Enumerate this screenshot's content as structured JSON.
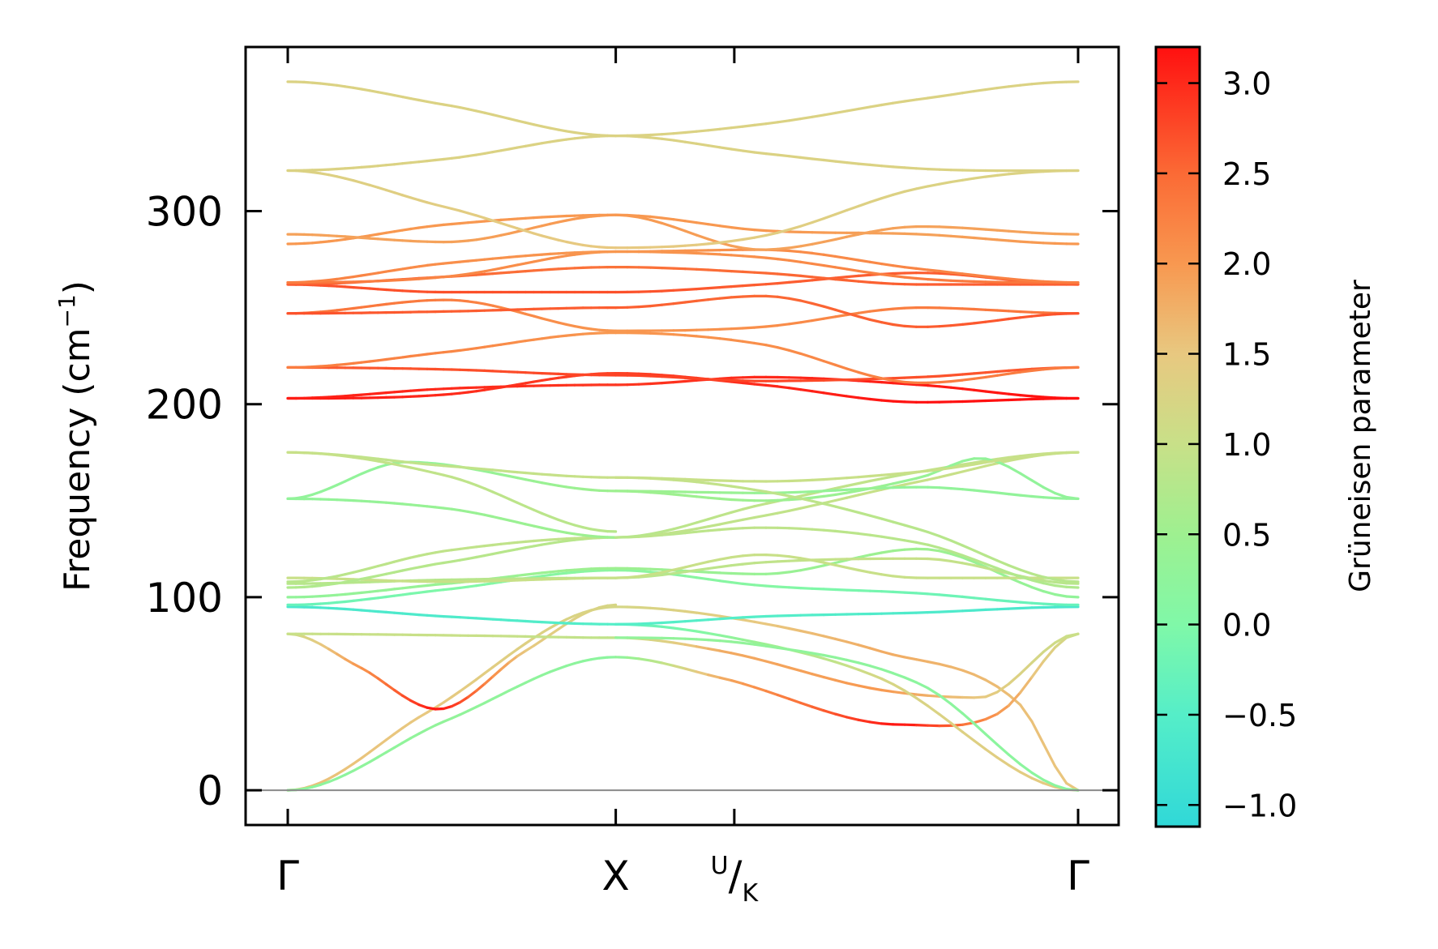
{
  "chart_data": {
    "type": "line",
    "ylabel": "Frequency (cm",
    "ylabel_sup": "−1",
    "ylabel_close": ")",
    "ylim": [
      -18,
      385
    ],
    "y_ticks": [
      {
        "value": 0,
        "label": "0"
      },
      {
        "value": 100,
        "label": "100"
      },
      {
        "value": 200,
        "label": "200"
      },
      {
        "value": 300,
        "label": "300"
      }
    ],
    "path_length": 2.0,
    "x_ticks": [
      {
        "pos": 0.0,
        "label": "Γ"
      },
      {
        "pos": 0.83,
        "label": "X"
      },
      {
        "pos": 1.13,
        "label": "U/K",
        "main": "U",
        "sub": "K",
        "split": true
      },
      {
        "pos": 2.0,
        "label": "Γ"
      }
    ],
    "zero_line": 0,
    "colorbar": {
      "title": "Grüneisen parameter",
      "range": [
        -1.12,
        3.2
      ],
      "ticks": [
        {
          "value": -1.0,
          "label": "−1.0"
        },
        {
          "value": -0.5,
          "label": "−0.5"
        },
        {
          "value": 0.0,
          "label": "0.0"
        },
        {
          "value": 0.5,
          "label": "0.5"
        },
        {
          "value": 1.0,
          "label": "1.0"
        },
        {
          "value": 1.5,
          "label": "1.5"
        },
        {
          "value": 2.0,
          "label": "2.0"
        },
        {
          "value": 2.5,
          "label": "2.5"
        },
        {
          "value": 3.0,
          "label": "3.0"
        }
      ],
      "stops": [
        {
          "value": -1.12,
          "color": "#30d8d8"
        },
        {
          "value": -0.5,
          "color": "#55eec8"
        },
        {
          "value": 0.0,
          "color": "#80f8a8"
        },
        {
          "value": 0.5,
          "color": "#9ef090"
        },
        {
          "value": 1.0,
          "color": "#c8e088"
        },
        {
          "value": 1.5,
          "color": "#e8c880"
        },
        {
          "value": 2.0,
          "color": "#f89850"
        },
        {
          "value": 2.5,
          "color": "#fb6a35"
        },
        {
          "value": 3.2,
          "color": "#ff1010"
        }
      ]
    },
    "bands": [
      {
        "x": [
          0,
          0.35,
          0.83
        ],
        "y": [
          0,
          40,
          95
        ],
        "g": [
          1.6,
          1.5,
          1.2
        ]
      },
      {
        "x": [
          0,
          0.4,
          0.83
        ],
        "y": [
          0,
          36,
          69
        ],
        "g": [
          0.2,
          0.3,
          0.2
        ]
      },
      {
        "x": [
          0,
          0.18,
          0.38,
          0.6,
          0.83
        ],
        "y": [
          81,
          64,
          42,
          72,
          96
        ],
        "g": [
          1.0,
          2.0,
          3.2,
          1.5,
          1.2
        ]
      },
      {
        "x": [
          0,
          0.5,
          0.83
        ],
        "y": [
          81,
          80,
          79
        ],
        "g": [
          1.0,
          1.0,
          0.9
        ]
      },
      {
        "x": [
          0,
          0.4,
          0.83
        ],
        "y": [
          95,
          90,
          86
        ],
        "g": [
          -0.7,
          -0.6,
          -0.5
        ]
      },
      {
        "x": [
          0,
          0.4,
          0.83
        ],
        "y": [
          96,
          104,
          114
        ],
        "g": [
          -0.3,
          0.0,
          0.2
        ]
      },
      {
        "x": [
          0,
          0.4,
          0.83
        ],
        "y": [
          100,
          107,
          115
        ],
        "g": [
          0.3,
          0.4,
          0.5
        ]
      },
      {
        "x": [
          0,
          0.4,
          0.83
        ],
        "y": [
          107,
          109,
          110
        ],
        "g": [
          0.8,
          0.8,
          0.8
        ]
      },
      {
        "x": [
          0,
          0.4,
          0.83
        ],
        "y": [
          110,
          108,
          110
        ],
        "g": [
          1.0,
          1.0,
          1.0
        ]
      },
      {
        "x": [
          0,
          0.4,
          0.83
        ],
        "y": [
          105,
          118,
          131
        ],
        "g": [
          0.7,
          0.8,
          0.8
        ]
      },
      {
        "x": [
          0,
          0.4,
          0.83
        ],
        "y": [
          108,
          124,
          131
        ],
        "g": [
          0.8,
          0.9,
          0.9
        ]
      },
      {
        "x": [
          0,
          0.4,
          0.83
        ],
        "y": [
          151,
          146,
          131
        ],
        "g": [
          0.3,
          0.4,
          0.5
        ]
      },
      {
        "x": [
          0,
          0.3,
          0.83
        ],
        "y": [
          151,
          170,
          155
        ],
        "g": [
          0.3,
          0.3,
          0.5
        ]
      },
      {
        "x": [
          0,
          0.4,
          0.83
        ],
        "y": [
          175,
          168,
          162
        ],
        "g": [
          0.9,
          0.9,
          1.0
        ]
      },
      {
        "x": [
          0,
          0.4,
          0.83
        ],
        "y": [
          175,
          163,
          134
        ],
        "g": [
          1.0,
          0.9,
          0.8
        ]
      },
      {
        "x": [
          0,
          0.4,
          0.83
        ],
        "y": [
          203,
          205,
          216
        ],
        "g": [
          3.2,
          3.0,
          2.8
        ]
      },
      {
        "x": [
          0,
          0.4,
          0.83
        ],
        "y": [
          203,
          208,
          210
        ],
        "g": [
          3.1,
          3.0,
          2.9
        ]
      },
      {
        "x": [
          0,
          0.4,
          0.83
        ],
        "y": [
          219,
          218,
          215
        ],
        "g": [
          2.6,
          2.7,
          2.8
        ]
      },
      {
        "x": [
          0,
          0.4,
          0.83
        ],
        "y": [
          219,
          227,
          237
        ],
        "g": [
          2.3,
          2.2,
          2.0
        ]
      },
      {
        "x": [
          0,
          0.4,
          0.83
        ],
        "y": [
          247,
          254,
          238
        ],
        "g": [
          2.4,
          2.3,
          2.0
        ]
      },
      {
        "x": [
          0,
          0.4,
          0.83
        ],
        "y": [
          247,
          248,
          250
        ],
        "g": [
          2.7,
          2.6,
          2.6
        ]
      },
      {
        "x": [
          0,
          0.4,
          0.83
        ],
        "y": [
          262,
          258,
          258
        ],
        "g": [
          2.7,
          2.7,
          2.7
        ]
      },
      {
        "x": [
          0,
          0.4,
          0.83
        ],
        "y": [
          262,
          266,
          271
        ],
        "g": [
          2.6,
          2.5,
          2.4
        ]
      },
      {
        "x": [
          0,
          0.4,
          0.83
        ],
        "y": [
          263,
          266,
          279
        ],
        "g": [
          2.4,
          2.2,
          2.0
        ]
      },
      {
        "x": [
          0,
          0.4,
          0.83
        ],
        "y": [
          263,
          273,
          279
        ],
        "g": [
          2.3,
          2.1,
          2.0
        ]
      },
      {
        "x": [
          0,
          0.4,
          0.83
        ],
        "y": [
          283,
          293,
          298
        ],
        "g": [
          2.0,
          2.0,
          2.0
        ]
      },
      {
        "x": [
          0,
          0.4,
          0.83
        ],
        "y": [
          288,
          284,
          298
        ],
        "g": [
          1.9,
          1.9,
          2.0
        ]
      },
      {
        "x": [
          0,
          0.4,
          0.83
        ],
        "y": [
          321,
          302,
          281
        ],
        "g": [
          1.3,
          1.4,
          1.5
        ]
      },
      {
        "x": [
          0,
          0.4,
          0.83
        ],
        "y": [
          321,
          327,
          339
        ],
        "g": [
          1.3,
          1.3,
          1.3
        ]
      },
      {
        "x": [
          0,
          0.4,
          0.83
        ],
        "y": [
          367,
          355,
          339
        ],
        "g": [
          1.3,
          1.3,
          1.3
        ]
      },
      {
        "x": [
          0.83,
          1.1,
          1.5,
          1.85,
          2.0
        ],
        "y": [
          95,
          90,
          72,
          45,
          0
        ],
        "g": [
          1.2,
          1.4,
          1.8,
          1.6,
          1.5
        ]
      },
      {
        "x": [
          0.83,
          1.1,
          1.55,
          1.8,
          2.0
        ],
        "y": [
          69,
          58,
          34,
          40,
          81
        ],
        "g": [
          0.2,
          1.8,
          3.2,
          2.0,
          1.0
        ]
      },
      {
        "x": [
          0.83,
          1.1,
          1.5,
          1.75,
          2.0
        ],
        "y": [
          79,
          72,
          52,
          48,
          81
        ],
        "g": [
          0.9,
          1.8,
          2.0,
          1.5,
          1.0
        ]
      },
      {
        "x": [
          0.83,
          1.1,
          1.5,
          2.0
        ],
        "y": [
          86,
          80,
          58,
          0
        ],
        "g": [
          -0.5,
          0.2,
          1.2,
          1.5
        ]
      },
      {
        "x": [
          0.83,
          1.2,
          1.6,
          2.0
        ],
        "y": [
          79,
          75,
          55,
          0
        ],
        "g": [
          0.3,
          0.3,
          0.2,
          0.2
        ]
      },
      {
        "x": [
          0.83,
          1.2,
          1.6,
          2.0
        ],
        "y": [
          86,
          90,
          92,
          95
        ],
        "g": [
          -0.5,
          -0.5,
          -0.6,
          -0.7
        ]
      },
      {
        "x": [
          0.83,
          1.2,
          1.6,
          2.0
        ],
        "y": [
          114,
          106,
          102,
          96
        ],
        "g": [
          0.2,
          0.1,
          -0.2,
          -0.3
        ]
      },
      {
        "x": [
          0.83,
          1.2,
          1.6,
          2.0
        ],
        "y": [
          115,
          112,
          125,
          100
        ],
        "g": [
          0.5,
          0.4,
          0.5,
          0.3
        ]
      },
      {
        "x": [
          0.83,
          1.2,
          1.6,
          2.0
        ],
        "y": [
          110,
          118,
          120,
          107
        ],
        "g": [
          0.8,
          0.9,
          1.0,
          0.8
        ]
      },
      {
        "x": [
          0.83,
          1.2,
          1.6,
          2.0
        ],
        "y": [
          110,
          122,
          110,
          110
        ],
        "g": [
          1.0,
          1.0,
          1.0,
          1.0
        ]
      },
      {
        "x": [
          0.83,
          1.2,
          1.6,
          2.0
        ],
        "y": [
          131,
          136,
          128,
          105
        ],
        "g": [
          0.8,
          0.9,
          0.8,
          0.7
        ]
      },
      {
        "x": [
          0.83,
          1.2,
          1.6,
          2.0
        ],
        "y": [
          131,
          142,
          160,
          175
        ],
        "g": [
          0.9,
          0.9,
          1.0,
          1.0
        ]
      },
      {
        "x": [
          0.83,
          1.2,
          1.6,
          2.0
        ],
        "y": [
          131,
          148,
          165,
          175
        ],
        "g": [
          0.8,
          0.9,
          0.9,
          1.0
        ]
      },
      {
        "x": [
          0.83,
          1.2,
          1.6,
          2.0
        ],
        "y": [
          155,
          154,
          157,
          151
        ],
        "g": [
          0.5,
          0.4,
          0.3,
          0.3
        ]
      },
      {
        "x": [
          0.83,
          1.2,
          1.6,
          1.75,
          2.0
        ],
        "y": [
          155,
          150,
          162,
          172,
          151
        ],
        "g": [
          0.5,
          0.5,
          0.4,
          0.3,
          0.3
        ]
      },
      {
        "x": [
          0.83,
          1.2,
          1.6,
          2.0
        ],
        "y": [
          162,
          160,
          165,
          175
        ],
        "g": [
          1.0,
          1.0,
          1.0,
          1.0
        ]
      },
      {
        "x": [
          0.83,
          1.2,
          1.6,
          2.0
        ],
        "y": [
          162,
          155,
          135,
          108
        ],
        "g": [
          1.0,
          0.9,
          0.8,
          0.8
        ]
      },
      {
        "x": [
          0.83,
          1.2,
          1.6,
          2.0
        ],
        "y": [
          216,
          210,
          201,
          203
        ],
        "g": [
          2.8,
          3.0,
          3.2,
          3.2
        ]
      },
      {
        "x": [
          0.83,
          1.2,
          1.6,
          2.0
        ],
        "y": [
          210,
          214,
          210,
          203
        ],
        "g": [
          2.9,
          3.0,
          3.1,
          3.2
        ]
      },
      {
        "x": [
          0.83,
          1.2,
          1.6,
          2.0
        ],
        "y": [
          215,
          212,
          214,
          219
        ],
        "g": [
          2.8,
          2.8,
          2.7,
          2.6
        ]
      },
      {
        "x": [
          0.83,
          1.2,
          1.6,
          2.0
        ],
        "y": [
          237,
          231,
          211,
          219
        ],
        "g": [
          2.0,
          2.1,
          2.3,
          2.3
        ]
      },
      {
        "x": [
          0.83,
          1.2,
          1.6,
          2.0
        ],
        "y": [
          238,
          240,
          250,
          247
        ],
        "g": [
          2.0,
          2.1,
          2.3,
          2.4
        ]
      },
      {
        "x": [
          0.83,
          1.2,
          1.6,
          2.0
        ],
        "y": [
          250,
          256,
          240,
          247
        ],
        "g": [
          2.6,
          2.5,
          2.6,
          2.7
        ]
      },
      {
        "x": [
          0.83,
          1.2,
          1.6,
          2.0
        ],
        "y": [
          258,
          262,
          268,
          262
        ],
        "g": [
          2.7,
          2.6,
          2.6,
          2.7
        ]
      },
      {
        "x": [
          0.83,
          1.2,
          1.6,
          2.0
        ],
        "y": [
          271,
          268,
          262,
          262
        ],
        "g": [
          2.4,
          2.5,
          2.6,
          2.6
        ]
      },
      {
        "x": [
          0.83,
          1.2,
          1.6,
          2.0
        ],
        "y": [
          279,
          276,
          265,
          263
        ],
        "g": [
          2.0,
          2.1,
          2.3,
          2.4
        ]
      },
      {
        "x": [
          0.83,
          1.2,
          1.6,
          2.0
        ],
        "y": [
          279,
          280,
          270,
          263
        ],
        "g": [
          2.0,
          2.1,
          2.2,
          2.3
        ]
      },
      {
        "x": [
          0.83,
          1.2,
          1.6,
          2.0
        ],
        "y": [
          298,
          290,
          288,
          283
        ],
        "g": [
          2.0,
          2.0,
          1.9,
          2.0
        ]
      },
      {
        "x": [
          0.83,
          1.2,
          1.6,
          2.0
        ],
        "y": [
          298,
          280,
          292,
          288
        ],
        "g": [
          2.0,
          1.9,
          1.9,
          1.9
        ]
      },
      {
        "x": [
          0.83,
          1.2,
          1.6,
          2.0
        ],
        "y": [
          281,
          287,
          312,
          321
        ],
        "g": [
          1.5,
          1.4,
          1.3,
          1.3
        ]
      },
      {
        "x": [
          0.83,
          1.2,
          1.6,
          2.0
        ],
        "y": [
          339,
          330,
          322,
          321
        ],
        "g": [
          1.3,
          1.3,
          1.3,
          1.3
        ]
      },
      {
        "x": [
          0.83,
          1.2,
          1.6,
          2.0
        ],
        "y": [
          339,
          345,
          358,
          367
        ],
        "g": [
          1.3,
          1.3,
          1.3,
          1.3
        ]
      }
    ]
  }
}
